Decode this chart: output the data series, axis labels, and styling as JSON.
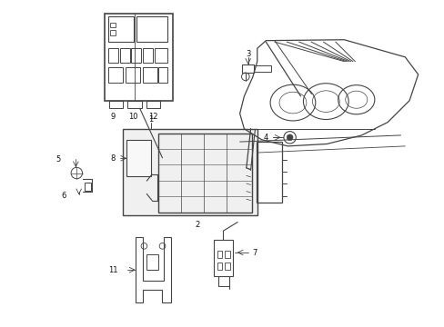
{
  "bg_color": "#ffffff",
  "line_color": "#444444",
  "figsize": [
    4.89,
    3.6
  ],
  "dpi": 100,
  "xlim": [
    0,
    10
  ],
  "ylim": [
    0,
    7.5
  ]
}
